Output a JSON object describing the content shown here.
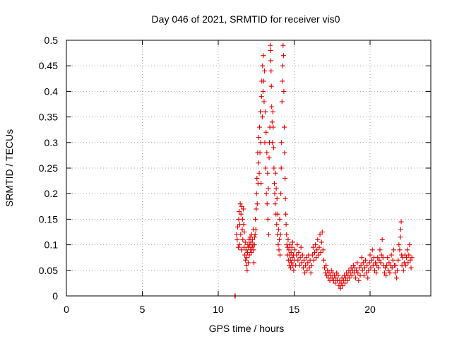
{
  "chart_data": {
    "type": "scatter",
    "title": "Day 046 of 2021, SRMTID for receiver vis0",
    "xlabel": "GPS time / hours",
    "ylabel": "SRMTID / TECUs",
    "xlim": [
      0,
      24
    ],
    "ylim": [
      0,
      0.5
    ],
    "x_ticks": [
      "0",
      "5",
      "10",
      "15",
      "20"
    ],
    "x_tick_values": [
      0,
      5,
      10,
      15,
      20
    ],
    "y_ticks": [
      "0",
      "0.05",
      "0.1",
      "0.15",
      "0.2",
      "0.25",
      "0.3",
      "0.35",
      "0.4",
      "0.45",
      "0.5"
    ],
    "y_tick_values": [
      0,
      0.05,
      0.1,
      0.15,
      0.2,
      0.25,
      0.3,
      0.35,
      0.4,
      0.45,
      0.5
    ],
    "grid": true,
    "marker": "+",
    "marker_color": "#e00000",
    "series": [
      {
        "name": "SRMTID",
        "points": [
          [
            11.1,
            0.0
          ],
          [
            11.12,
            0.0
          ],
          [
            11.2,
            0.12
          ],
          [
            11.25,
            0.11
          ],
          [
            11.28,
            0.135
          ],
          [
            11.32,
            0.095
          ],
          [
            11.35,
            0.15
          ],
          [
            11.38,
            0.165
          ],
          [
            11.4,
            0.1
          ],
          [
            11.42,
            0.14
          ],
          [
            11.45,
            0.18
          ],
          [
            11.48,
            0.12
          ],
          [
            11.5,
            0.16
          ],
          [
            11.52,
            0.09
          ],
          [
            11.55,
            0.175
          ],
          [
            11.58,
            0.13
          ],
          [
            11.6,
            0.15
          ],
          [
            11.62,
            0.11
          ],
          [
            11.65,
            0.17
          ],
          [
            11.68,
            0.14
          ],
          [
            11.7,
            0.095
          ],
          [
            11.72,
            0.125
          ],
          [
            11.75,
            0.08
          ],
          [
            11.78,
            0.105
          ],
          [
            11.8,
            0.07
          ],
          [
            11.83,
            0.09
          ],
          [
            11.85,
            0.06
          ],
          [
            11.88,
            0.075
          ],
          [
            11.9,
            0.05
          ],
          [
            11.93,
            0.085
          ],
          [
            11.95,
            0.1
          ],
          [
            11.98,
            0.065
          ],
          [
            12.0,
            0.095
          ],
          [
            12.03,
            0.11
          ],
          [
            12.05,
            0.08
          ],
          [
            12.08,
            0.1
          ],
          [
            12.1,
            0.115
          ],
          [
            12.13,
            0.09
          ],
          [
            12.15,
            0.105
          ],
          [
            12.18,
            0.085
          ],
          [
            12.2,
            0.12
          ],
          [
            12.23,
            0.095
          ],
          [
            12.25,
            0.11
          ],
          [
            12.28,
            0.1
          ],
          [
            12.3,
            0.13
          ],
          [
            12.33,
            0.09
          ],
          [
            12.35,
            0.065
          ],
          [
            12.38,
            0.1
          ],
          [
            12.4,
            0.115
          ],
          [
            12.43,
            0.12
          ],
          [
            12.45,
            0.15
          ],
          [
            12.48,
            0.13
          ],
          [
            12.5,
            0.17
          ],
          [
            12.52,
            0.2
          ],
          [
            12.55,
            0.23
          ],
          [
            12.57,
            0.18
          ],
          [
            12.6,
            0.28
          ],
          [
            12.62,
            0.22
          ],
          [
            12.65,
            0.26
          ],
          [
            12.67,
            0.31
          ],
          [
            12.7,
            0.24
          ],
          [
            12.72,
            0.33
          ],
          [
            12.75,
            0.28
          ],
          [
            12.77,
            0.36
          ],
          [
            12.8,
            0.3
          ],
          [
            12.82,
            0.22
          ],
          [
            12.85,
            0.39
          ],
          [
            12.87,
            0.42
          ],
          [
            12.9,
            0.35
          ],
          [
            12.92,
            0.45
          ],
          [
            12.95,
            0.4
          ],
          [
            12.97,
            0.47
          ],
          [
            13.0,
            0.42
          ],
          [
            13.02,
            0.38
          ],
          [
            13.05,
            0.44
          ],
          [
            13.07,
            0.3
          ],
          [
            13.1,
            0.36
          ],
          [
            13.12,
            0.25
          ],
          [
            13.15,
            0.32
          ],
          [
            13.17,
            0.2
          ],
          [
            13.2,
            0.28
          ],
          [
            13.22,
            0.18
          ],
          [
            13.25,
            0.24
          ],
          [
            13.27,
            0.15
          ],
          [
            13.3,
            0.21
          ],
          [
            13.32,
            0.12
          ],
          [
            13.35,
            0.27
          ],
          [
            13.37,
            0.3
          ],
          [
            13.4,
            0.33
          ],
          [
            13.42,
            0.49
          ],
          [
            13.44,
            0.48
          ],
          [
            13.46,
            0.46
          ],
          [
            13.48,
            0.44
          ],
          [
            13.5,
            0.41
          ],
          [
            13.52,
            0.37
          ],
          [
            13.55,
            0.34
          ],
          [
            13.57,
            0.3
          ],
          [
            13.6,
            0.36
          ],
          [
            13.62,
            0.33
          ],
          [
            13.65,
            0.29
          ],
          [
            13.67,
            0.25
          ],
          [
            13.7,
            0.22
          ],
          [
            13.72,
            0.2
          ],
          [
            13.75,
            0.18
          ],
          [
            13.77,
            0.24
          ],
          [
            13.8,
            0.16
          ],
          [
            13.82,
            0.21
          ],
          [
            13.85,
            0.14
          ],
          [
            13.87,
            0.19
          ],
          [
            13.9,
            0.12
          ],
          [
            13.92,
            0.16
          ],
          [
            13.95,
            0.1
          ],
          [
            13.97,
            0.13
          ],
          [
            14.0,
            0.09
          ],
          [
            14.02,
            0.11
          ],
          [
            14.05,
            0.15
          ],
          [
            14.07,
            0.08
          ],
          [
            14.1,
            0.12
          ],
          [
            14.12,
            0.2
          ],
          [
            14.15,
            0.25
          ],
          [
            14.17,
            0.3
          ],
          [
            14.2,
            0.38
          ],
          [
            14.22,
            0.42
          ],
          [
            14.25,
            0.45
          ],
          [
            14.27,
            0.49
          ],
          [
            14.3,
            0.47
          ],
          [
            14.32,
            0.4
          ],
          [
            14.35,
            0.33
          ],
          [
            14.37,
            0.28
          ],
          [
            14.4,
            0.23
          ],
          [
            14.42,
            0.19
          ],
          [
            14.45,
            0.16
          ],
          [
            14.47,
            0.14
          ],
          [
            14.5,
            0.12
          ],
          [
            14.52,
            0.1
          ],
          [
            14.55,
            0.08
          ],
          [
            14.57,
            0.095
          ],
          [
            14.6,
            0.11
          ],
          [
            14.62,
            0.07
          ],
          [
            14.65,
            0.09
          ],
          [
            14.67,
            0.06
          ],
          [
            14.7,
            0.08
          ],
          [
            14.72,
            0.1
          ],
          [
            14.75,
            0.07
          ],
          [
            14.77,
            0.055
          ],
          [
            14.8,
            0.085
          ],
          [
            14.82,
            0.065
          ],
          [
            14.85,
            0.095
          ],
          [
            14.87,
            0.075
          ],
          [
            14.9,
            0.105
          ],
          [
            14.92,
            0.06
          ],
          [
            14.95,
            0.08
          ],
          [
            14.97,
            0.05
          ],
          [
            15.0,
            0.07
          ],
          [
            15.05,
            0.09
          ],
          [
            15.1,
            0.06
          ],
          [
            15.15,
            0.08
          ],
          [
            15.2,
            0.1
          ],
          [
            15.25,
            0.07
          ],
          [
            15.3,
            0.085
          ],
          [
            15.35,
            0.06
          ],
          [
            15.4,
            0.075
          ],
          [
            15.45,
            0.095
          ],
          [
            15.5,
            0.065
          ],
          [
            15.55,
            0.08
          ],
          [
            15.6,
            0.055
          ],
          [
            15.65,
            0.07
          ],
          [
            15.7,
            0.045
          ],
          [
            15.75,
            0.06
          ],
          [
            15.8,
            0.075
          ],
          [
            15.85,
            0.05
          ],
          [
            15.9,
            0.065
          ],
          [
            15.95,
            0.08
          ],
          [
            16.0,
            0.055
          ],
          [
            16.05,
            0.07
          ],
          [
            16.1,
            0.045
          ],
          [
            16.15,
            0.06
          ],
          [
            16.2,
            0.08
          ],
          [
            16.25,
            0.095
          ],
          [
            16.3,
            0.07
          ],
          [
            16.35,
            0.085
          ],
          [
            16.4,
            0.1
          ],
          [
            16.45,
            0.075
          ],
          [
            16.5,
            0.09
          ],
          [
            16.55,
            0.11
          ],
          [
            16.6,
            0.08
          ],
          [
            16.65,
            0.095
          ],
          [
            16.7,
            0.12
          ],
          [
            16.75,
            0.085
          ],
          [
            16.8,
            0.105
          ],
          [
            16.85,
            0.125
          ],
          [
            16.9,
            0.09
          ],
          [
            16.95,
            0.07
          ],
          [
            17.0,
            0.055
          ],
          [
            17.05,
            0.045
          ],
          [
            17.1,
            0.06
          ],
          [
            17.15,
            0.04
          ],
          [
            17.2,
            0.05
          ],
          [
            17.25,
            0.035
          ],
          [
            17.3,
            0.045
          ],
          [
            17.35,
            0.03
          ],
          [
            17.4,
            0.04
          ],
          [
            17.45,
            0.05
          ],
          [
            17.5,
            0.035
          ],
          [
            17.55,
            0.045
          ],
          [
            17.6,
            0.03
          ],
          [
            17.65,
            0.04
          ],
          [
            17.7,
            0.025
          ],
          [
            17.75,
            0.035
          ],
          [
            17.8,
            0.045
          ],
          [
            17.85,
            0.03
          ],
          [
            17.9,
            0.04
          ],
          [
            17.95,
            0.02
          ],
          [
            18.0,
            0.03
          ],
          [
            18.05,
            0.015
          ],
          [
            18.1,
            0.025
          ],
          [
            18.15,
            0.035
          ],
          [
            18.2,
            0.02
          ],
          [
            18.25,
            0.03
          ],
          [
            18.3,
            0.04
          ],
          [
            18.35,
            0.025
          ],
          [
            18.4,
            0.035
          ],
          [
            18.45,
            0.045
          ],
          [
            18.5,
            0.03
          ],
          [
            18.55,
            0.04
          ],
          [
            18.6,
            0.05
          ],
          [
            18.65,
            0.035
          ],
          [
            18.7,
            0.045
          ],
          [
            18.75,
            0.055
          ],
          [
            18.8,
            0.04
          ],
          [
            18.85,
            0.05
          ],
          [
            18.9,
            0.06
          ],
          [
            18.95,
            0.045
          ],
          [
            19.0,
            0.055
          ],
          [
            19.05,
            0.035
          ],
          [
            19.1,
            0.05
          ],
          [
            19.15,
            0.065
          ],
          [
            19.2,
            0.045
          ],
          [
            19.25,
            0.03
          ],
          [
            19.3,
            0.055
          ],
          [
            19.35,
            0.04
          ],
          [
            19.4,
            0.06
          ],
          [
            19.45,
            0.075
          ],
          [
            19.5,
            0.05
          ],
          [
            19.55,
            0.065
          ],
          [
            19.6,
            0.04
          ],
          [
            19.65,
            0.055
          ],
          [
            19.7,
            0.07
          ],
          [
            19.75,
            0.045
          ],
          [
            19.8,
            0.06
          ],
          [
            19.85,
            0.035
          ],
          [
            19.9,
            0.05
          ],
          [
            19.95,
            0.065
          ],
          [
            20.0,
            0.08
          ],
          [
            20.05,
            0.055
          ],
          [
            20.1,
            0.07
          ],
          [
            20.15,
            0.09
          ],
          [
            20.2,
            0.06
          ],
          [
            20.25,
            0.075
          ],
          [
            20.3,
            0.05
          ],
          [
            20.35,
            0.065
          ],
          [
            20.4,
            0.045
          ],
          [
            20.45,
            0.06
          ],
          [
            20.5,
            0.075
          ],
          [
            20.55,
            0.055
          ],
          [
            20.6,
            0.07
          ],
          [
            20.65,
            0.09
          ],
          [
            20.7,
            0.065
          ],
          [
            20.75,
            0.08
          ],
          [
            20.8,
            0.11
          ],
          [
            20.85,
            0.075
          ],
          [
            20.9,
            0.06
          ],
          [
            20.95,
            0.045
          ],
          [
            21.0,
            0.055
          ],
          [
            21.05,
            0.04
          ],
          [
            21.1,
            0.06
          ],
          [
            21.15,
            0.075
          ],
          [
            21.2,
            0.05
          ],
          [
            21.25,
            0.065
          ],
          [
            21.3,
            0.045
          ],
          [
            21.35,
            0.06
          ],
          [
            21.4,
            0.08
          ],
          [
            21.45,
            0.055
          ],
          [
            21.5,
            0.07
          ],
          [
            21.55,
            0.09
          ],
          [
            21.6,
            0.06
          ],
          [
            21.65,
            0.045
          ],
          [
            21.7,
            0.06
          ],
          [
            21.75,
            0.035
          ],
          [
            21.8,
            0.05
          ],
          [
            21.85,
            0.07
          ],
          [
            21.9,
            0.1
          ],
          [
            21.95,
            0.09
          ],
          [
            22.0,
            0.115
          ],
          [
            22.02,
            0.13
          ],
          [
            22.05,
            0.145
          ],
          [
            22.08,
            0.08
          ],
          [
            22.1,
            0.06
          ],
          [
            22.15,
            0.075
          ],
          [
            22.2,
            0.05
          ],
          [
            22.25,
            0.065
          ],
          [
            22.3,
            0.08
          ],
          [
            22.35,
            0.06
          ],
          [
            22.4,
            0.075
          ],
          [
            22.45,
            0.09
          ],
          [
            22.5,
            0.065
          ],
          [
            22.55,
            0.08
          ],
          [
            22.6,
            0.1
          ],
          [
            22.65,
            0.07
          ],
          [
            22.7,
            0.055
          ],
          [
            22.75,
            0.075
          ]
        ]
      }
    ]
  }
}
